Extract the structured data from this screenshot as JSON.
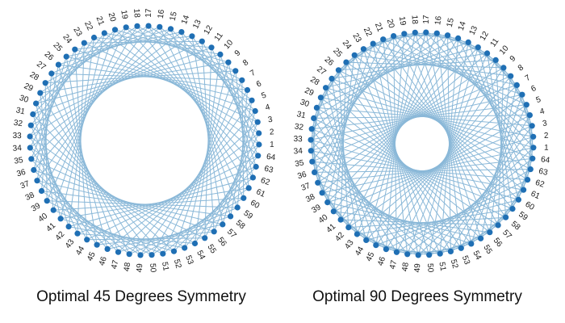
{
  "captions": {
    "left": "Optimal 45 Degrees Symmetry",
    "right": "Optimal 90 Degrees Symmetry"
  },
  "colors": {
    "node": "#1f6fb4",
    "edge": "#8ab8d8",
    "label": "#1a1a1a"
  },
  "diagrams": [
    {
      "name": "optimal-45-degrees-symmetry",
      "node_count": 64,
      "node_labels_start": 1,
      "edge_strides": [
        11,
        20
      ]
    },
    {
      "name": "optimal-90-degrees-symmetry",
      "node_count": 64,
      "node_labels_start": 1,
      "edge_strides": [
        16,
        27,
        5
      ]
    }
  ]
}
